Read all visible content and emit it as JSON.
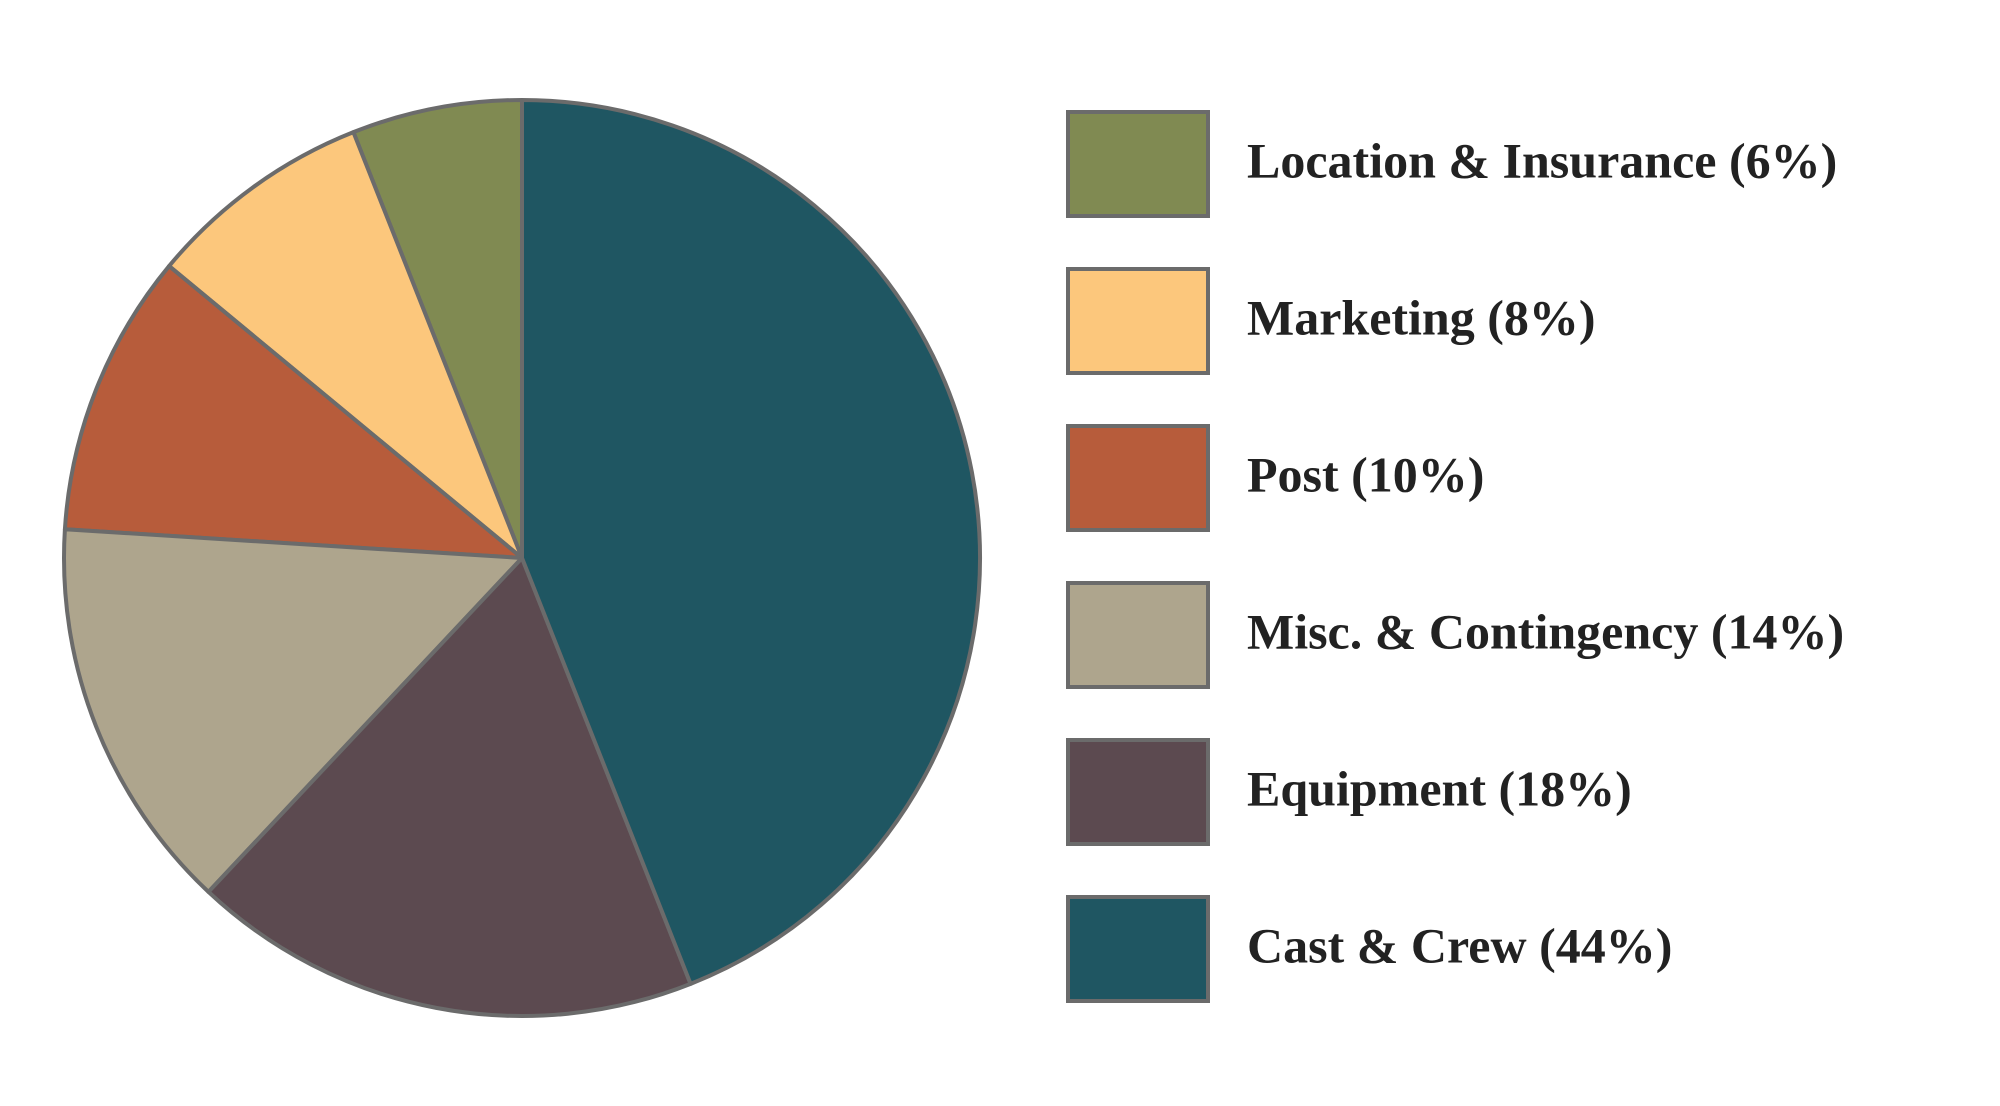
{
  "chart_data": {
    "type": "pie",
    "categories": [
      "Location & Insurance (6%)",
      "Marketing (8%)",
      "Post (10%)",
      "Misc. & Contingency (14%)",
      "Equipment (18%)",
      "Cast & Crew (44%)"
    ],
    "values": [
      6,
      8,
      10,
      14,
      18,
      44
    ],
    "colors": [
      "#808a52",
      "#fcc77c",
      "#b75c3b",
      "#aea58d",
      "#5c4a50",
      "#1f5662"
    ],
    "legend": "right"
  }
}
